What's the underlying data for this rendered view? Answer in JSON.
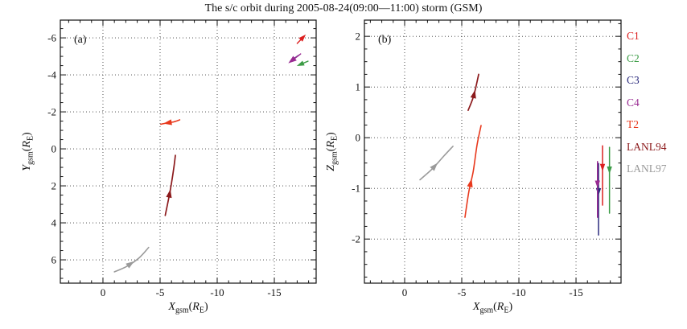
{
  "title": "The s/c orbit during 2005-08-24(09:00—11:00) storm (GSM)",
  "colors": {
    "C1": "#dc2020",
    "C2": "#3c9c46",
    "C3": "#2b2b7d",
    "C4": "#992b92",
    "T2": "#e8391d",
    "LANL94": "#8c1a1c",
    "LANL97": "#9a9a9a",
    "grid": "#3a3a3a",
    "axis": "#111111"
  },
  "legend": {
    "items": [
      {
        "label": "C1",
        "color": "#dc2020"
      },
      {
        "label": "C2",
        "color": "#3c9c46"
      },
      {
        "label": "C3",
        "color": "#2b2b7d"
      },
      {
        "label": "C4",
        "color": "#992b92"
      },
      {
        "label": "T2",
        "color": "#e8391d"
      },
      {
        "label": "LANL94",
        "color": "#8c1a1c"
      },
      {
        "label": "LANL97",
        "color": "#9a9a9a"
      }
    ]
  },
  "chart_data": [
    {
      "type": "line",
      "panel_label": "(a)",
      "xlabel_parts": [
        {
          "t": "X",
          "i": 1
        },
        {
          "t": "gsm",
          "s": 1
        },
        {
          "t": "("
        },
        {
          "t": "R",
          "i": 1
        },
        {
          "t": "E",
          "s": 1
        },
        {
          "t": ")"
        }
      ],
      "ylabel_parts": [
        {
          "t": "Y",
          "i": 1
        },
        {
          "t": "gsm",
          "s": 1
        },
        {
          "t": "("
        },
        {
          "t": "R",
          "i": 1
        },
        {
          "t": "E",
          "s": 1
        },
        {
          "t": ")"
        }
      ],
      "xlim": [
        3.73,
        -18.66
      ],
      "ylim": [
        -6.96,
        7.26
      ],
      "xticks": [
        0,
        -5,
        -10,
        -15
      ],
      "yticks": [
        -6,
        -4,
        -2,
        0,
        2,
        4,
        6
      ],
      "x_major_step": 5,
      "y_major_step": 2,
      "x_minor_step": 1,
      "y_minor_step": 0.5,
      "grid": true,
      "series": [
        {
          "name": "LANL97",
          "color": "#9a9a9a",
          "lw": 1.6,
          "arrow_size": 4.5,
          "arrow_t": 0.42,
          "points": [
            [
              -1.0,
              6.65
            ],
            [
              -2.1,
              6.35
            ],
            [
              -3.15,
              5.9
            ],
            [
              -4.0,
              5.33
            ]
          ]
        },
        {
          "name": "LANL94",
          "color": "#8c1a1c",
          "lw": 1.7,
          "arrow_size": 4.5,
          "arrow_t": 0.36,
          "points": [
            [
              -5.45,
              3.6
            ],
            [
              -5.78,
              2.6
            ],
            [
              -6.0,
              1.85
            ],
            [
              -6.22,
              0.95
            ],
            [
              -6.34,
              0.35
            ]
          ]
        },
        {
          "name": "T2",
          "color": "#e8391d",
          "lw": 1.6,
          "arrow_size": 4.5,
          "arrow_t": 0.62,
          "points": [
            [
              -6.72,
              -1.57
            ],
            [
              -6.2,
              -1.46
            ],
            [
              -5.6,
              -1.4
            ],
            [
              -5.06,
              -1.33
            ]
          ]
        },
        {
          "name": "C3",
          "color": "#2b2b7d",
          "lw": 1.4,
          "arrow_size": 4,
          "arrow_t": null,
          "points": [
            [
              -17.1,
              -5.05
            ],
            [
              -16.8,
              -4.92
            ]
          ]
        },
        {
          "name": "C4",
          "color": "#992b92",
          "lw": 1.5,
          "arrow_size": 4.5,
          "arrow_t": 1,
          "points": [
            [
              -17.3,
              -5.13
            ],
            [
              -16.55,
              -4.78
            ]
          ]
        },
        {
          "name": "C1",
          "color": "#dc2020",
          "lw": 1.4,
          "arrow_size": 4,
          "arrow_t": 1,
          "points": [
            [
              -17.0,
              -5.7
            ],
            [
              -17.5,
              -6.02
            ]
          ]
        },
        {
          "name": "C2",
          "color": "#3c9c46",
          "lw": 1.4,
          "arrow_size": 4,
          "arrow_t": 1,
          "points": [
            [
              -17.95,
              -4.74
            ],
            [
              -17.3,
              -4.57
            ]
          ]
        }
      ]
    },
    {
      "type": "line",
      "panel_label": "(b)",
      "xlabel_parts": [
        {
          "t": "X",
          "i": 1
        },
        {
          "t": "gsm",
          "s": 1
        },
        {
          "t": "("
        },
        {
          "t": "R",
          "i": 1
        },
        {
          "t": "E",
          "s": 1
        },
        {
          "t": ")"
        }
      ],
      "ylabel_parts": [
        {
          "t": "Z",
          "i": 1
        },
        {
          "t": "gsm",
          "s": 1
        },
        {
          "t": "("
        },
        {
          "t": "R",
          "i": 1
        },
        {
          "t": "E",
          "s": 1
        },
        {
          "t": ")"
        }
      ],
      "xlim": [
        3.52,
        -18.94
      ],
      "ylim": [
        2.32,
        -2.87
      ],
      "xticks": [
        0,
        -5,
        -10,
        -15
      ],
      "yticks": [
        2,
        1,
        0,
        -1,
        -2
      ],
      "x_major_step": 5,
      "y_major_step": 1,
      "x_minor_step": 1,
      "y_minor_step": 0.25,
      "grid": true,
      "series": [
        {
          "name": "LANL97",
          "color": "#9a9a9a",
          "lw": 1.6,
          "arrow_size": 4.5,
          "arrow_t": 0.42,
          "points": [
            [
              -1.34,
              -0.83
            ],
            [
              -2.4,
              -0.62
            ],
            [
              -3.4,
              -0.37
            ],
            [
              -4.23,
              -0.17
            ]
          ]
        },
        {
          "name": "LANL94",
          "color": "#8c1a1c",
          "lw": 1.7,
          "arrow_size": 4.5,
          "arrow_t": 0.45,
          "points": [
            [
              -5.56,
              0.54
            ],
            [
              -6.05,
              0.83
            ],
            [
              -6.48,
              1.25
            ]
          ]
        },
        {
          "name": "T2",
          "color": "#e8391d",
          "lw": 1.6,
          "arrow_size": 4.5,
          "arrow_t": 0.37,
          "points": [
            [
              -5.28,
              -1.57
            ],
            [
              -5.63,
              -1.05
            ],
            [
              -6.0,
              -0.67
            ],
            [
              -6.34,
              -0.14
            ],
            [
              -6.69,
              0.24
            ]
          ]
        },
        {
          "name": "C3",
          "color": "#2b2b7d",
          "lw": 1.5,
          "arrow_size": 4,
          "arrow_t": 0.39,
          "points": [
            [
              -16.97,
              -0.51
            ],
            [
              -16.97,
              -1.92
            ]
          ]
        },
        {
          "name": "C4",
          "color": "#992b92",
          "lw": 1.5,
          "arrow_size": 4,
          "arrow_t": 0.4,
          "points": [
            [
              -16.88,
              -0.47
            ],
            [
              -16.88,
              -1.57
            ]
          ]
        },
        {
          "name": "C1",
          "color": "#dc2020",
          "lw": 1.5,
          "arrow_size": 4,
          "arrow_t": 0.36,
          "points": [
            [
              -17.32,
              -0.16
            ],
            [
              -17.32,
              -1.33
            ]
          ]
        },
        {
          "name": "C2",
          "color": "#3c9c46",
          "lw": 1.5,
          "arrow_size": 4,
          "arrow_t": 0.34,
          "points": [
            [
              -17.93,
              -0.19
            ],
            [
              -17.93,
              -1.49
            ]
          ]
        }
      ]
    }
  ]
}
